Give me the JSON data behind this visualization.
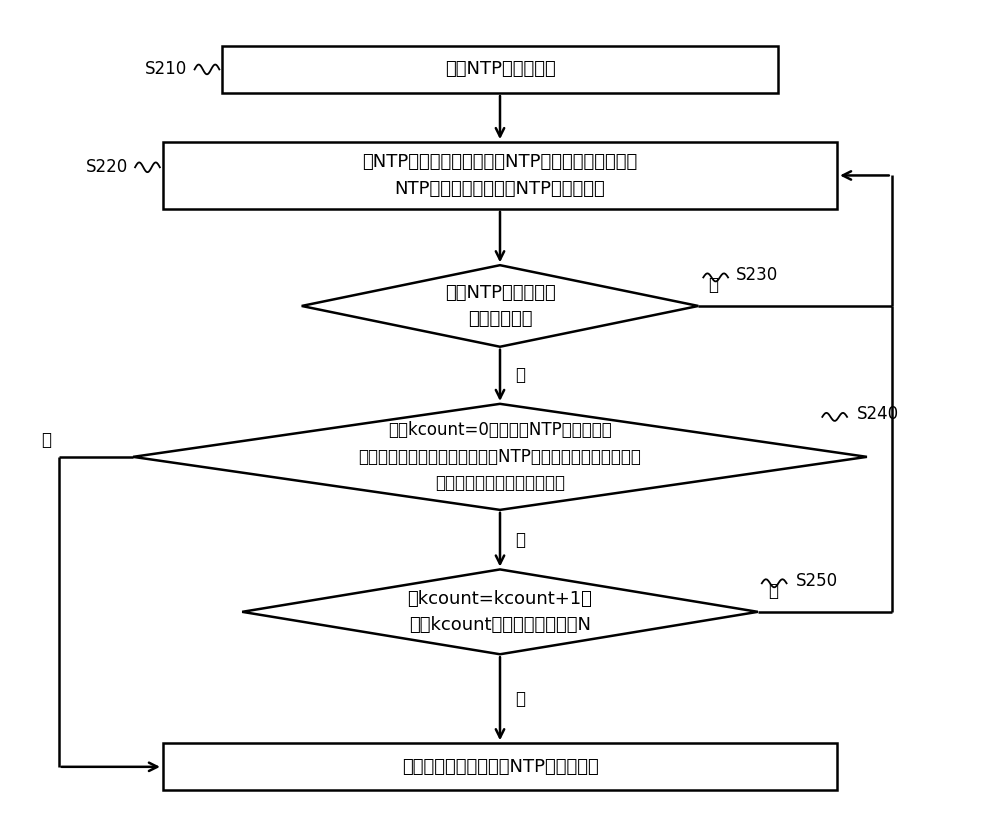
{
  "bg_color": "#ffffff",
  "box_color": "#ffffff",
  "box_edge_color": "#000000",
  "arrow_color": "#000000",
  "text_color": "#000000",
  "font_size": 13,
  "label_font_size": 12,
  "figsize": [
    10.0,
    8.24
  ],
  "dpi": 100,
  "s210_text": "建立NTP服务器列表",
  "s220_text": "从NTP服务器列表选取一个NTP服务器地址，获取该\nNTP服务器地址对应的NTP服务器时间",
  "s230_text": "判断NTP服务器时间\n获取是否成功",
  "s240_text": "设定kcount=0，将当前NTP服务器时间\n与本地时间进行比较，判断当前NTP服务器时间与本地时间的\n差值的绝对值是否高于预设值",
  "s250_text": "令kcount=kcount+1，\n判断kcount是否低于预设次数N",
  "s260_text": "将本地时间替换成当前NTP服务器时间",
  "label_s210": "S210",
  "label_s220": "S220",
  "label_s230": "S230",
  "label_s240": "S240",
  "label_s250": "S250",
  "yes_text": "是",
  "no_text": "否"
}
